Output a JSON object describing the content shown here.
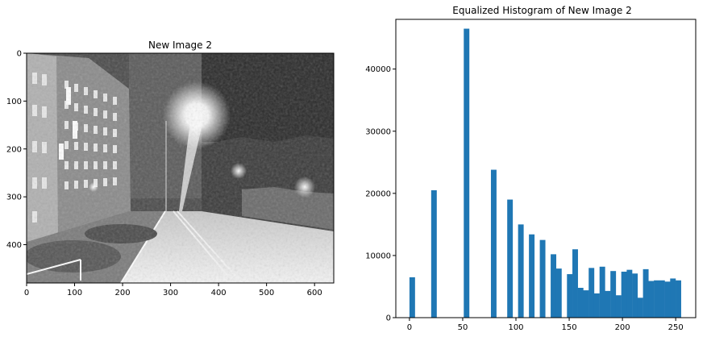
{
  "chart_data": [
    {
      "type": "image",
      "title": "New Image 2",
      "xlim": [
        0,
        640
      ],
      "ylim": [
        480,
        0
      ],
      "xticks": [
        0,
        100,
        200,
        300,
        400,
        500,
        600
      ],
      "yticks": [
        0,
        100,
        200,
        300,
        400
      ]
    },
    {
      "type": "bar",
      "title": "Equalized Histogram of New Image 2",
      "xlim": [
        -12.8,
        268.8
      ],
      "ylim": [
        0,
        48000
      ],
      "xticks": [
        0,
        50,
        100,
        150,
        200,
        250
      ],
      "yticks": [
        0,
        10000,
        20000,
        30000,
        40000
      ],
      "bin_width": 5.1,
      "bins": [
        {
          "x": 0,
          "v": 6500
        },
        {
          "x": 20.4,
          "v": 20500
        },
        {
          "x": 51,
          "v": 46500
        },
        {
          "x": 76.5,
          "v": 23800
        },
        {
          "x": 91.8,
          "v": 19000
        },
        {
          "x": 102,
          "v": 15000
        },
        {
          "x": 112.2,
          "v": 13400
        },
        {
          "x": 122.4,
          "v": 12500
        },
        {
          "x": 132.6,
          "v": 10200
        },
        {
          "x": 137.7,
          "v": 7900
        },
        {
          "x": 147.9,
          "v": 7000
        },
        {
          "x": 153,
          "v": 11000
        },
        {
          "x": 158.1,
          "v": 4800
        },
        {
          "x": 163.2,
          "v": 4400
        },
        {
          "x": 168.3,
          "v": 8000
        },
        {
          "x": 173.4,
          "v": 3900
        },
        {
          "x": 178.5,
          "v": 8200
        },
        {
          "x": 183.6,
          "v": 4300
        },
        {
          "x": 188.7,
          "v": 7500
        },
        {
          "x": 193.8,
          "v": 3600
        },
        {
          "x": 198.9,
          "v": 7400
        },
        {
          "x": 204,
          "v": 7700
        },
        {
          "x": 209.1,
          "v": 7100
        },
        {
          "x": 214.2,
          "v": 3200
        },
        {
          "x": 219.3,
          "v": 7800
        },
        {
          "x": 224.4,
          "v": 5900
        },
        {
          "x": 229.5,
          "v": 6000
        },
        {
          "x": 234.6,
          "v": 6000
        },
        {
          "x": 239.7,
          "v": 5800
        },
        {
          "x": 244.8,
          "v": 6300
        },
        {
          "x": 249.9,
          "v": 6000
        }
      ]
    }
  ]
}
